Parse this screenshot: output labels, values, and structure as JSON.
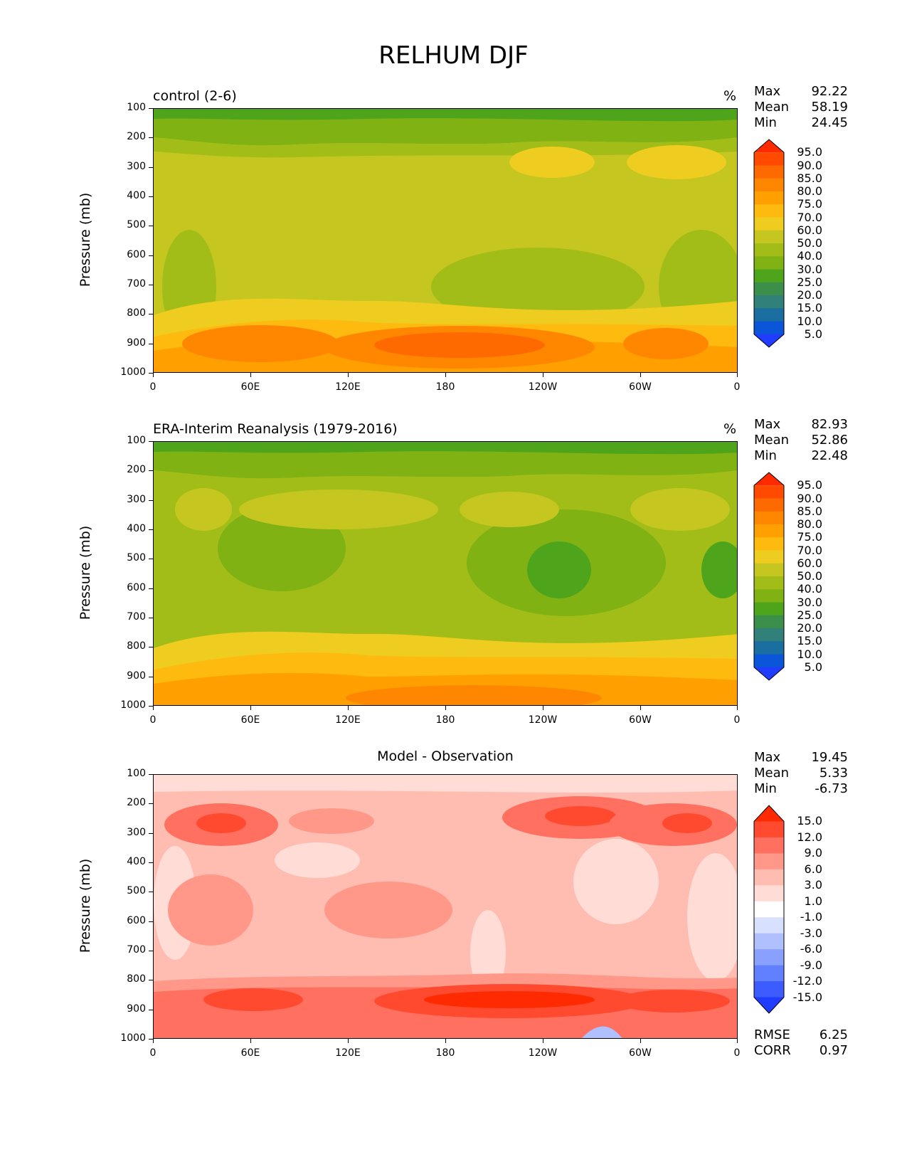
{
  "figure": {
    "title": "RELHUM DJF"
  },
  "panels": [
    {
      "id": "control",
      "title": "control (2-6)",
      "units": "%",
      "stats": {
        "max_label": "Max",
        "max": "92.22",
        "mean_label": "Mean",
        "mean": "58.19",
        "min_label": "Min",
        "min": "24.45"
      },
      "colorbar": {
        "labels": [
          "95.0",
          "90.0",
          "85.0",
          "80.0",
          "75.0",
          "70.0",
          "60.0",
          "50.0",
          "40.0",
          "30.0",
          "25.0",
          "20.0",
          "15.0",
          "10.0",
          "5.0"
        ],
        "colors": [
          "#ff2a00",
          "#ff4a00",
          "#ff6a00",
          "#ff8700",
          "#ffa000",
          "#ffba10",
          "#eecc20",
          "#c6c620",
          "#a3bd18",
          "#7fb212",
          "#4ea51c",
          "#3b8f4a",
          "#32807a",
          "#1a6fa0",
          "#0a55d8",
          "#1f3cff"
        ]
      },
      "background": "#c5c620"
    },
    {
      "id": "obs",
      "title": "ERA-Interim Reanalysis (1979-2016)",
      "units": "%",
      "stats": {
        "max_label": "Max",
        "max": "82.93",
        "mean_label": "Mean",
        "mean": "52.86",
        "min_label": "Min",
        "min": "22.48"
      },
      "colorbar": {
        "labels": [
          "95.0",
          "90.0",
          "85.0",
          "80.0",
          "75.0",
          "70.0",
          "60.0",
          "50.0",
          "40.0",
          "30.0",
          "25.0",
          "20.0",
          "15.0",
          "10.0",
          "5.0"
        ],
        "colors": [
          "#ff2a00",
          "#ff4a00",
          "#ff6a00",
          "#ff8700",
          "#ffa000",
          "#ffba10",
          "#eecc20",
          "#c6c620",
          "#a3bd18",
          "#7fb212",
          "#4ea51c",
          "#3b8f4a",
          "#32807a",
          "#1a6fa0",
          "#0a55d8",
          "#1f3cff"
        ]
      },
      "background": "#a3bd18"
    },
    {
      "id": "diff",
      "title": "Model - Observation",
      "units": "",
      "stats": {
        "max_label": "Max",
        "max": "19.45",
        "mean_label": "Mean",
        "mean": "5.33",
        "min_label": "Min",
        "min": "-6.73"
      },
      "extra_stats": {
        "rmse_label": "RMSE",
        "rmse": "6.25",
        "corr_label": "CORR",
        "corr": "0.97"
      },
      "colorbar": {
        "labels": [
          "15.0",
          "12.0",
          "9.0",
          "6.0",
          "3.0",
          "1.0",
          "-1.0",
          "-3.0",
          "-6.0",
          "-9.0",
          "-12.0",
          "-15.0"
        ],
        "colors": [
          "#ff2a00",
          "#ff4a30",
          "#ff7060",
          "#ff9888",
          "#ffbcb0",
          "#ffdcd6",
          "#ffffff",
          "#d8e0ff",
          "#b0c0ff",
          "#8aa0ff",
          "#6080ff",
          "#3c5cff",
          "#1f3cff"
        ]
      },
      "background": "#ffbcb0"
    }
  ],
  "axes": {
    "xticks": [
      "0",
      "60E",
      "120E",
      "180",
      "120W",
      "60W",
      "0"
    ],
    "yticks": [
      "100",
      "200",
      "300",
      "400",
      "500",
      "600",
      "700",
      "800",
      "900",
      "1000"
    ],
    "ylabel": "Pressure (mb)"
  },
  "chart_data": [
    {
      "type": "heatmap",
      "title": "control (2-6)",
      "x": [
        "0",
        "60E",
        "120E",
        "180",
        "120W",
        "60W",
        "0"
      ],
      "y": [
        100,
        200,
        300,
        400,
        500,
        600,
        700,
        800,
        900,
        1000
      ],
      "ylabel": "Pressure (mb)",
      "units": "%",
      "stats": {
        "max": 92.22,
        "mean": 58.19,
        "min": 24.45
      },
      "colorbar_levels": [
        5,
        10,
        15,
        20,
        25,
        30,
        40,
        50,
        60,
        70,
        75,
        80,
        85,
        90,
        95
      ]
    },
    {
      "type": "heatmap",
      "title": "ERA-Interim Reanalysis (1979-2016)",
      "x": [
        "0",
        "60E",
        "120E",
        "180",
        "120W",
        "60W",
        "0"
      ],
      "y": [
        100,
        200,
        300,
        400,
        500,
        600,
        700,
        800,
        900,
        1000
      ],
      "ylabel": "Pressure (mb)",
      "units": "%",
      "stats": {
        "max": 82.93,
        "mean": 52.86,
        "min": 22.48
      },
      "colorbar_levels": [
        5,
        10,
        15,
        20,
        25,
        30,
        40,
        50,
        60,
        70,
        75,
        80,
        85,
        90,
        95
      ]
    },
    {
      "type": "heatmap",
      "title": "Model - Observation",
      "x": [
        "0",
        "60E",
        "120E",
        "180",
        "120W",
        "60W",
        "0"
      ],
      "y": [
        100,
        200,
        300,
        400,
        500,
        600,
        700,
        800,
        900,
        1000
      ],
      "ylabel": "Pressure (mb)",
      "stats": {
        "max": 19.45,
        "mean": 5.33,
        "min": -6.73,
        "rmse": 6.25,
        "corr": 0.97
      },
      "colorbar_levels": [
        -15,
        -12,
        -9,
        -6,
        -3,
        -1,
        1,
        3,
        6,
        9,
        12,
        15
      ]
    }
  ]
}
